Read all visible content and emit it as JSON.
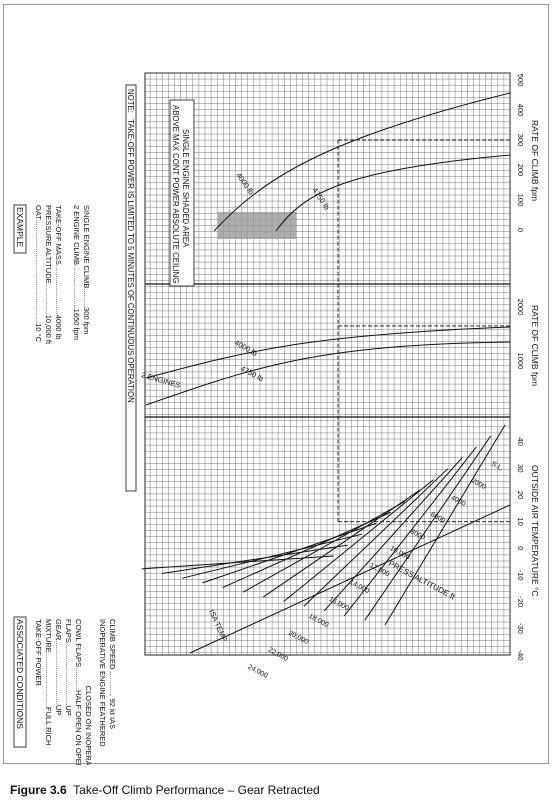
{
  "caption": {
    "number": "Figure 3.6",
    "text": "Take-Off Climb Performance – Gear Retracted"
  },
  "chart_data": {
    "type": "line",
    "orientation": "rotated-90-ccw",
    "associated_conditions": {
      "title": "ASSOCIATED CONDITIONS",
      "lines": [
        "TAKE-OFF POWER",
        "MIXTURE..........................FULL RICH",
        "GEAR...............................UP",
        "FLAPS..............................UP",
        "COWL FLAPS...........HALF OPEN ON OPERATING ENGINE",
        "                                CLOSED ON INOPERATIVE ENGINE",
        "INOPERATIVE ENGINE FEATHERED",
        "CLIMB SPEED ............ 92 kt IAS"
      ]
    },
    "example": {
      "title": "EXAMPLE",
      "lines": [
        "OAT..................................................10 °C",
        "PRESSURE ALTITUDE...............10,000 ft",
        "TAKE-OFF MASS........................4000 lb",
        "2 ENGINE CLIMB.....................1650 fpm",
        "SINGLE ENGINE CLIMB.........300 fpm"
      ]
    },
    "note": "NOTE:   TAKE-OFF POWER IS LIMITED TO 5 MINUTES OF CONTINUOUS OPERATION",
    "shaded_note": [
      "SINGLE ENGINE SHADED AREA",
      "ABOVE MAX CONT POWER ABSOLUTE CEILING"
    ],
    "oat_panel": {
      "xlabel": "OUTSIDE AIR TEMPERATURE °C",
      "xlim": [
        -40,
        50
      ],
      "ticks": [
        -40,
        -30,
        -20,
        -10,
        0,
        10,
        20,
        30,
        40
      ],
      "pressure_altitude_label": "PRESS ALTITUDE ft",
      "altitudes": [
        "S.L.",
        "2000",
        "4000",
        "6000",
        "8000",
        "10,000",
        "12,000",
        "14,000",
        "16,000",
        "18,000",
        "20,000",
        "22,000",
        "24,000"
      ],
      "isa_label": "ISA TEMP"
    },
    "twin_panel": {
      "xlabel": "RATE OF CLIMB fpm",
      "xlim": [
        0,
        2000
      ],
      "ticks": [
        1000,
        2000
      ],
      "series_label": "2 ENGINES",
      "series": [
        {
          "name": "4000 lb"
        },
        {
          "name": "4750 lb"
        }
      ]
    },
    "single_panel": {
      "xlabel": "RATE OF CLIMB fpm",
      "xlim": [
        0,
        500
      ],
      "ticks": [
        0,
        100,
        200,
        300,
        400,
        500
      ],
      "series": [
        {
          "name": "4000 lb"
        },
        {
          "name": "4750 lb"
        }
      ]
    },
    "example_result": {
      "oat": 10,
      "altitude": 10000,
      "mass": 4000,
      "two_engine_roc": 1650,
      "single_engine_roc": 300
    }
  }
}
